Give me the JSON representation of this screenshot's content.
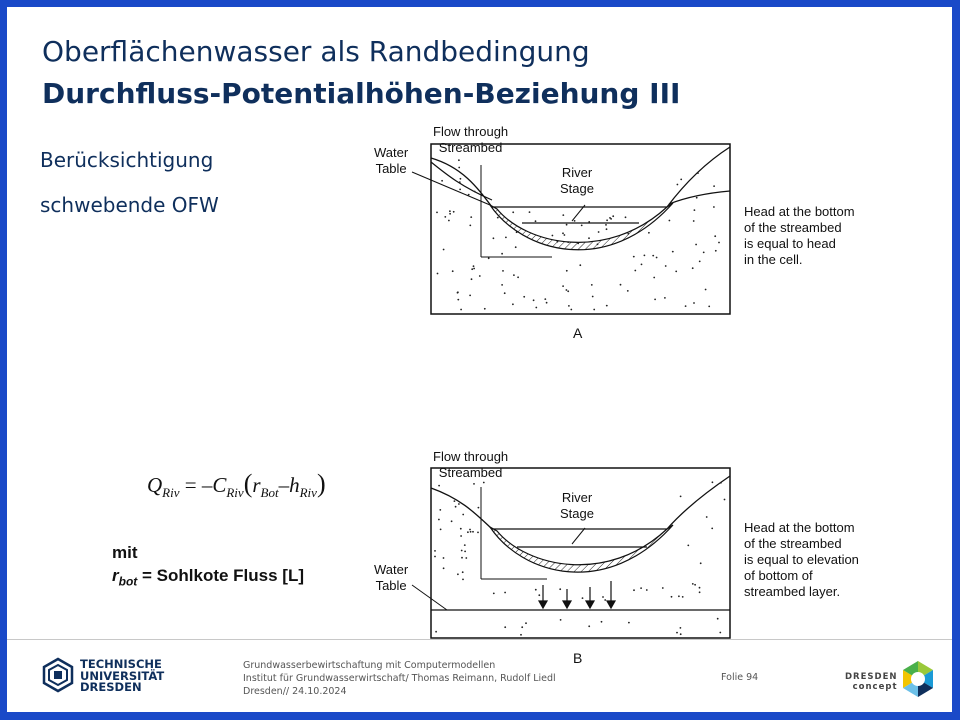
{
  "title": {
    "line1": "Oberflächenwasser als Randbedingung",
    "line2": "Durchfluss-Potentialhöhen-Beziehung III"
  },
  "bullets": [
    "Berücksichtigung",
    "schwebende OFW"
  ],
  "figure_a": {
    "label_flow": [
      "Flow through",
      "Streambed"
    ],
    "label_water_table": [
      "Water",
      "Table"
    ],
    "label_river_stage": [
      "River",
      "Stage"
    ],
    "description": [
      "Head at the bottom",
      "of the streambed",
      "is equal to head",
      "in the cell."
    ],
    "caption": "A"
  },
  "figure_b": {
    "label_flow": [
      "Flow through",
      "Streambed"
    ],
    "label_water_table": [
      "Water",
      "Table"
    ],
    "label_river_stage": [
      "River",
      "Stage"
    ],
    "description": [
      "Head at the bottom",
      "of the streambed",
      "is equal to elevation",
      "of bottom of",
      "streambed layer."
    ],
    "caption": "B"
  },
  "formula": {
    "Q": "Q",
    "Q_sub": "Riv",
    "eq": " = –",
    "C": "C",
    "C_sub": "Riv",
    "open": "(",
    "r": "r",
    "r_sub": "Bot",
    "minus": "–",
    "h": "h",
    "h_sub": "Riv",
    "close": ")"
  },
  "note": {
    "mit": "mit",
    "r": "r",
    "r_sub": "bot",
    "text": "= Sohlkote Fluss [L]"
  },
  "footer": {
    "logo_lines": [
      "TECHNISCHE",
      "UNIVERSITÄT",
      "DRESDEN"
    ],
    "line1": "Grundwasserbewirtschaftung mit Computermodellen",
    "line2": "Institut für Grundwasserwirtschaft/ Thomas Reimann, Rudolf Liedl",
    "line3": "Dresden// 24.10.2024",
    "folie": "Folie 94",
    "dc_lines": [
      "DRESDEN",
      "concept"
    ]
  },
  "colors": {
    "border": "#1a49c8",
    "title": "#0f2f5c"
  }
}
